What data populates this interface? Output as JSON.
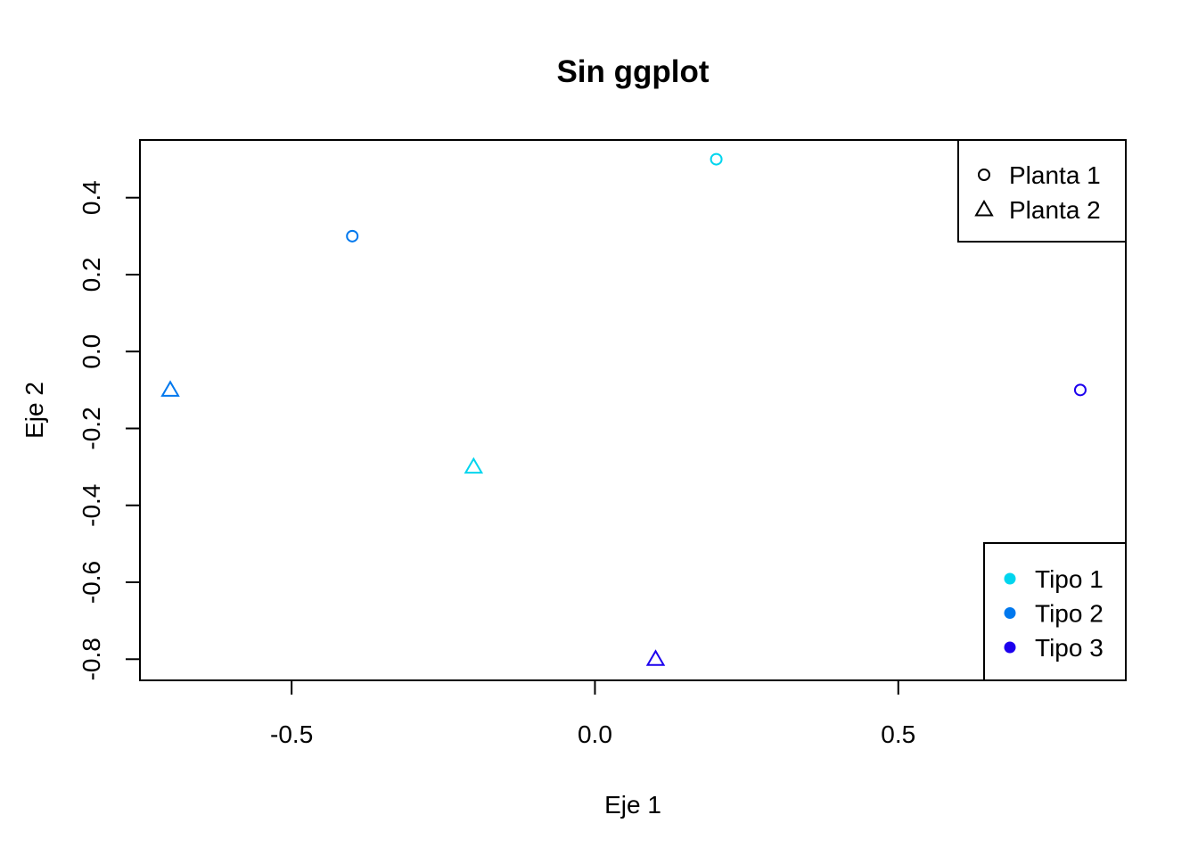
{
  "chart_data": {
    "type": "scatter",
    "title": "Sin ggplot",
    "xlabel": "Eje 1",
    "ylabel": "Eje 2",
    "xlim": [
      -0.75,
      0.875
    ],
    "ylim": [
      -0.855,
      0.55
    ],
    "xticks": [
      -0.5,
      0.0,
      0.5
    ],
    "xtick_labels": [
      "-0.5",
      "0.0",
      "0.5"
    ],
    "yticks": [
      -0.8,
      -0.6,
      -0.4,
      -0.2,
      0.0,
      0.2,
      0.4
    ],
    "ytick_labels": [
      "-0.8",
      "-0.6",
      "-0.4",
      "-0.2",
      "0.0",
      "0.2",
      "0.4"
    ],
    "grid": false,
    "points": [
      {
        "x": 0.2,
        "y": 0.5,
        "planta": "Planta 1",
        "tipo": "Tipo 1"
      },
      {
        "x": -0.4,
        "y": 0.3,
        "planta": "Planta 1",
        "tipo": "Tipo 2"
      },
      {
        "x": 0.8,
        "y": -0.1,
        "planta": "Planta 1",
        "tipo": "Tipo 3"
      },
      {
        "x": -0.7,
        "y": -0.1,
        "planta": "Planta 2",
        "tipo": "Tipo 2"
      },
      {
        "x": -0.2,
        "y": -0.3,
        "planta": "Planta 2",
        "tipo": "Tipo 1"
      },
      {
        "x": 0.1,
        "y": -0.8,
        "planta": "Planta 2",
        "tipo": "Tipo 3"
      }
    ],
    "shape_legend": {
      "placement": "top-right",
      "entries": [
        {
          "label": "Planta 1",
          "shape": "circle"
        },
        {
          "label": "Planta 2",
          "shape": "triangle"
        }
      ]
    },
    "color_legend": {
      "placement": "bottom-right",
      "entries": [
        {
          "label": "Tipo 1",
          "color": "#00d5ee"
        },
        {
          "label": "Tipo 2",
          "color": "#0078ee"
        },
        {
          "label": "Tipo 3",
          "color": "#1c00ee"
        }
      ]
    }
  }
}
